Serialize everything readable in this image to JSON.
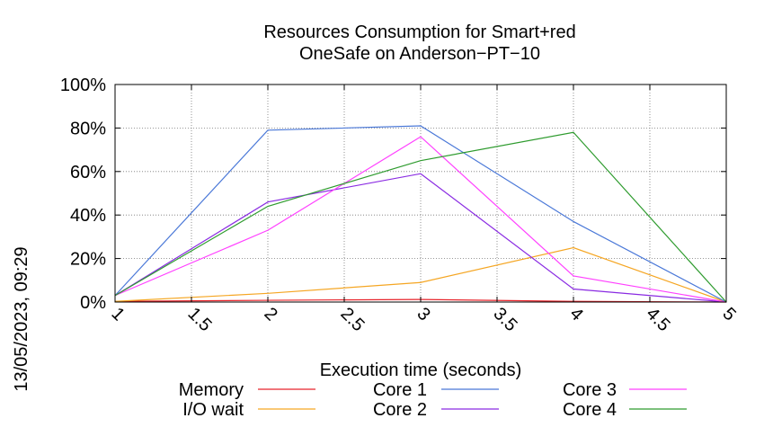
{
  "chart_data": {
    "type": "line",
    "title": "Resources Consumption for Smart+red",
    "subtitle": "OneSafe on Anderson−PT−10",
    "xlabel": "Execution time (seconds)",
    "ylabel": "",
    "side_label": "13/05/2023, 09:29",
    "xlim": [
      1,
      5
    ],
    "ylim": [
      0,
      100
    ],
    "x_ticks": [
      1,
      1.5,
      2,
      2.5,
      3,
      3.5,
      4,
      4.5,
      5
    ],
    "x_tick_labels": [
      "1",
      "1.5",
      "2",
      "2.5",
      "3",
      "3.5",
      "4",
      "4.5",
      "5"
    ],
    "y_ticks": [
      0,
      20,
      40,
      60,
      80,
      100
    ],
    "y_tick_labels": [
      "0%",
      "20%",
      "40%",
      "60%",
      "80%",
      "100%"
    ],
    "grid": true,
    "legend_position": "bottom",
    "x": [
      1,
      2,
      3,
      4,
      5
    ],
    "series": [
      {
        "name": "Memory",
        "color": "#e8232a",
        "values": [
          0.3,
          0.8,
          1.2,
          0.3,
          0
        ]
      },
      {
        "name": "I/O wait",
        "color": "#f5a623",
        "values": [
          0.3,
          4,
          9,
          25,
          0
        ]
      },
      {
        "name": "Core 1",
        "color": "#4a78d8",
        "values": [
          3,
          79,
          81,
          37,
          0
        ]
      },
      {
        "name": "Core 2",
        "color": "#8a2be2",
        "values": [
          3,
          46,
          59,
          6,
          0
        ]
      },
      {
        "name": "Core 3",
        "color": "#ff40ff",
        "values": [
          3,
          33,
          76,
          12,
          0
        ]
      },
      {
        "name": "Core 4",
        "color": "#2e9b2e",
        "values": [
          3,
          44,
          65,
          78,
          0
        ]
      }
    ]
  }
}
